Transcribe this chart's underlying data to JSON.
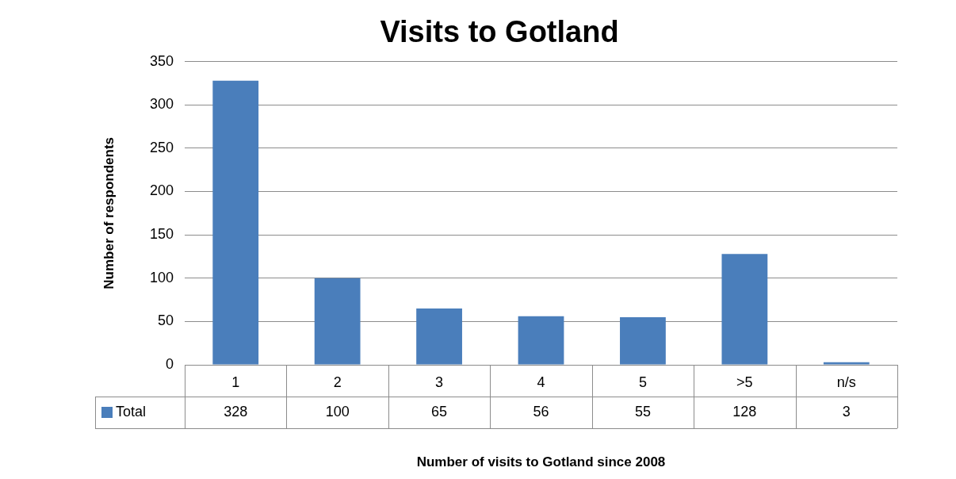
{
  "chart_data": {
    "type": "bar",
    "title": "Visits to Gotland",
    "xlabel": "Number of visits to Gotland since 2008",
    "ylabel": "Number of respondents",
    "categories": [
      "1",
      "2",
      "3",
      "4",
      "5",
      ">5",
      "n/s"
    ],
    "series": [
      {
        "name": "Total",
        "color": "#4a7ebb",
        "values": [
          328,
          100,
          65,
          56,
          55,
          128,
          3
        ]
      }
    ],
    "ylim": [
      0,
      350
    ],
    "yticks": [
      0,
      50,
      100,
      150,
      200,
      250,
      300,
      350
    ],
    "grid": "y",
    "legend": "bottom",
    "data_labels": true
  }
}
